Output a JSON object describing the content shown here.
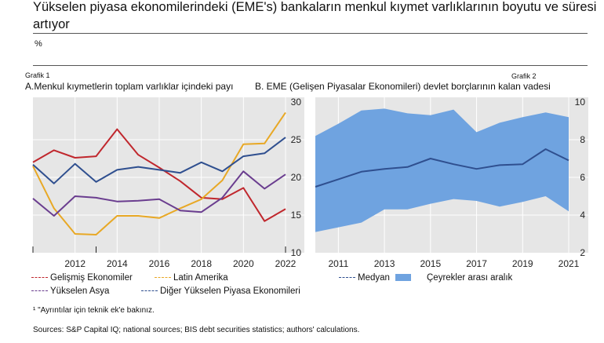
{
  "header": {
    "title": "Yükselen piyasa ekonomilerindeki (EME's) bankaların menkul kıymet varlıklarının boyutu ve süresi artıyor",
    "unit": "%"
  },
  "panels": {
    "a": {
      "tag": "Grafik 1",
      "subtitle": "A.Menkul kıymetlerin toplam varlıklar içindeki payı"
    },
    "b": {
      "tag": "Grafik 2",
      "subtitle": "B. EME (Gelişen Piyasalar Ekonomileri) devlet borçlarının kalan vadesi"
    }
  },
  "legend_a": [
    {
      "label": "Gelişmiş Ekonomiler",
      "color": "#c0272d"
    },
    {
      "label": "Latin Amerika",
      "color": "#e8a825"
    },
    {
      "label": "Yükselen Asya",
      "color": "#6a3d8f"
    },
    {
      "label": "Diğer Yükselen Piyasa Ekonomileri",
      "color": "#2f4f8f"
    }
  ],
  "legend_b": [
    {
      "label": "Medyan",
      "color": "#2f4f8f"
    },
    {
      "label": "Çeyrekler arası aralık",
      "color": "#6fa3e0"
    }
  ],
  "footnote": "¹ \"Ayrıntılar için teknik ek'e bakınız.",
  "sources": "Sources: S&P Capital IQ; national sources; BIS debt securities statistics; authors' calculations.",
  "colors": {
    "panel_bg": "#e6e6e6",
    "band": "#6fa3e0",
    "grid": "#ffffff"
  },
  "chart_data": [
    {
      "type": "line",
      "title": "A.Menkul kıymetlerin toplam varlıklar içindeki payı",
      "x": [
        2010,
        2011,
        2012,
        2013,
        2014,
        2015,
        2016,
        2017,
        2018,
        2019,
        2020,
        2021,
        2022
      ],
      "xticks": [
        2012,
        2014,
        2016,
        2018,
        2020,
        2022
      ],
      "ylim": [
        10,
        30
      ],
      "yticks": [
        10,
        15,
        20,
        25,
        30
      ],
      "y_axis_side": "right",
      "grid": true,
      "series": [
        {
          "name": "Gelişmiş Ekonomiler",
          "color": "#c0272d",
          "values": [
            22.0,
            23.6,
            22.6,
            22.8,
            26.4,
            23.0,
            21.3,
            19.5,
            17.3,
            17.1,
            18.6,
            14.2,
            15.8
          ]
        },
        {
          "name": "Latin Amerika",
          "color": "#e8a825",
          "values": [
            21.5,
            15.9,
            12.5,
            12.4,
            14.9,
            14.9,
            14.6,
            15.9,
            17.1,
            19.6,
            24.4,
            24.5,
            28.6
          ]
        },
        {
          "name": "Yükselen Asya",
          "color": "#6a3d8f",
          "values": [
            17.2,
            14.9,
            17.5,
            17.3,
            16.8,
            16.9,
            17.1,
            15.6,
            15.4,
            17.3,
            20.8,
            18.5,
            20.4
          ]
        },
        {
          "name": "Diğer Yükselen Piyasa Ekonomileri",
          "color": "#2f4f8f",
          "values": [
            21.7,
            19.2,
            21.8,
            19.4,
            21.0,
            21.4,
            21.0,
            20.6,
            22.0,
            20.8,
            22.8,
            23.2,
            25.3
          ]
        }
      ]
    },
    {
      "type": "area",
      "title": "B. EME (Gelişen Piyasalar Ekonomileri) devlet borçlarının kalan vadesi",
      "x": [
        2010,
        2011,
        2012,
        2013,
        2014,
        2015,
        2016,
        2017,
        2018,
        2019,
        2020,
        2021
      ],
      "xticks": [
        2011,
        2013,
        2015,
        2017,
        2019,
        2021
      ],
      "ylim": [
        2,
        10
      ],
      "yticks": [
        2,
        4,
        6,
        8,
        10
      ],
      "y_axis_side": "right",
      "grid": true,
      "series": [
        {
          "name": "Medyan",
          "color": "#2f4f8f",
          "values": [
            5.5,
            5.9,
            6.3,
            6.45,
            6.55,
            7.0,
            6.7,
            6.45,
            6.65,
            6.7,
            7.5,
            6.9
          ]
        },
        {
          "name": "Çeyrekler arası aralık",
          "color": "#6fa3e0",
          "lower": [
            3.1,
            3.35,
            3.6,
            4.3,
            4.3,
            4.6,
            4.85,
            4.75,
            4.45,
            4.7,
            5.0,
            4.2
          ],
          "upper": [
            8.2,
            8.85,
            9.55,
            9.65,
            9.4,
            9.3,
            9.6,
            8.4,
            8.9,
            9.2,
            9.45,
            9.2
          ]
        }
      ]
    }
  ]
}
